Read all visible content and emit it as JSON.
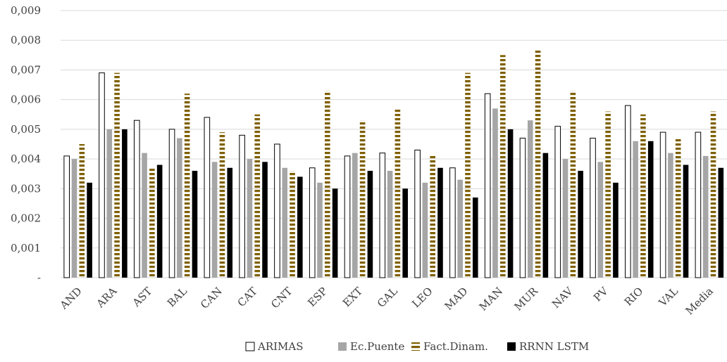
{
  "chart_data": {
    "type": "bar",
    "title": "",
    "xlabel": "",
    "ylabel": "",
    "ylim": [
      0,
      0.009
    ],
    "yticks": [
      {
        "value": 0,
        "label": "-"
      },
      {
        "value": 0.001,
        "label": "0,001"
      },
      {
        "value": 0.002,
        "label": "0,002"
      },
      {
        "value": 0.003,
        "label": "0,003"
      },
      {
        "value": 0.004,
        "label": "0,004"
      },
      {
        "value": 0.005,
        "label": "0,005"
      },
      {
        "value": 0.006,
        "label": "0,006"
      },
      {
        "value": 0.007,
        "label": "0,007"
      },
      {
        "value": 0.008,
        "label": "0,008"
      },
      {
        "value": 0.009,
        "label": "0,009"
      }
    ],
    "grid": true,
    "legend_position": "bottom",
    "categories": [
      "AND",
      "ARA",
      "AST",
      "BAL",
      "CAN",
      "CAT",
      "CNT",
      "ESP",
      "EXT",
      "GAL",
      "LEO",
      "MAD",
      "MAN",
      "MUR",
      "NAV",
      "PV",
      "RIO",
      "VAL",
      "Media"
    ],
    "series": [
      {
        "name": "ARIMAS",
        "color": "#ffffff",
        "stroke": "#000000",
        "pattern": "solid",
        "values": [
          0.0041,
          0.0069,
          0.0053,
          0.005,
          0.0054,
          0.0048,
          0.0045,
          0.0037,
          0.0041,
          0.0042,
          0.0043,
          0.0037,
          0.0062,
          0.0047,
          0.0051,
          0.0047,
          0.0058,
          0.0049,
          0.0049
        ]
      },
      {
        "name": "Ec.Puente",
        "color": "#a6a6a6",
        "stroke": "none",
        "pattern": "solid",
        "values": [
          0.004,
          0.005,
          0.0042,
          0.0047,
          0.0039,
          0.004,
          0.0037,
          0.0032,
          0.0042,
          0.0036,
          0.0032,
          0.0033,
          0.0057,
          0.0053,
          0.004,
          0.0039,
          0.0046,
          0.0042,
          0.0041
        ]
      },
      {
        "name": "Fact.Dinam.",
        "color": "#7f6000",
        "stroke": "none",
        "pattern": "dashed",
        "values": [
          0.0045,
          0.0069,
          0.0037,
          0.0062,
          0.0049,
          0.0055,
          0.0036,
          0.0063,
          0.0053,
          0.0057,
          0.0041,
          0.0069,
          0.0075,
          0.0077,
          0.0063,
          0.0056,
          0.0055,
          0.0047,
          0.0056
        ]
      },
      {
        "name": "RRNN LSTM",
        "color": "#000000",
        "stroke": "none",
        "pattern": "solid",
        "values": [
          0.0032,
          0.005,
          0.0038,
          0.0036,
          0.0037,
          0.0039,
          0.0034,
          0.003,
          0.0036,
          0.003,
          0.0037,
          0.0027,
          0.005,
          0.0042,
          0.0036,
          0.0032,
          0.0046,
          0.0038,
          0.0037
        ]
      }
    ]
  }
}
